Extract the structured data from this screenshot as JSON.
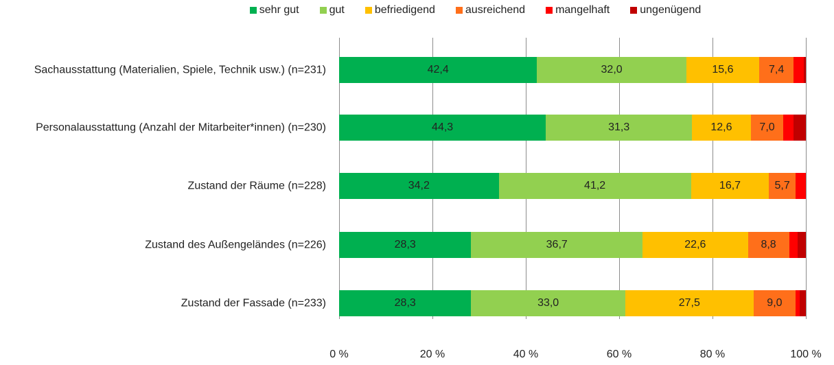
{
  "chart_data": {
    "type": "stacked-bar-horizontal",
    "categories": [
      "Sachausstattung (Materialien, Spiele, Technik usw.) (n=231)",
      "Personalausstattung (Anzahl der Mitarbeiter*innen) (n=230)",
      "Zustand der Räume (n=228)",
      "Zustand des Außengeländes (n=226)",
      "Zustand der Fassade (n=233)"
    ],
    "series": [
      {
        "name": "sehr gut",
        "color": "#00b050",
        "values": [
          42.4,
          44.3,
          34.2,
          28.3,
          28.3
        ],
        "value_labels": [
          "42,4",
          "44,3",
          "34,2",
          "28,3",
          "28,3"
        ]
      },
      {
        "name": "gut",
        "color": "#92d050",
        "values": [
          32.0,
          31.3,
          41.2,
          36.7,
          33.0
        ],
        "value_labels": [
          "32,0",
          "31,3",
          "41,2",
          "36,7",
          "33,0"
        ]
      },
      {
        "name": "befriedigend",
        "color": "#ffc000",
        "values": [
          15.6,
          12.6,
          16.7,
          22.6,
          27.5
        ],
        "value_labels": [
          "15,6",
          "12,6",
          "16,7",
          "22,6",
          "27,5"
        ]
      },
      {
        "name": "ausreichend",
        "color": "#ff6f1a",
        "values": [
          7.4,
          7.0,
          5.7,
          8.8,
          9.0
        ],
        "value_labels": [
          "7,4",
          "7,0",
          "5,7",
          "8,8",
          "9,0"
        ]
      },
      {
        "name": "mangelhaft",
        "color": "#ff0000",
        "values": [
          2.2,
          2.2,
          2.2,
          1.8,
          0.9
        ]
      },
      {
        "name": "ungenügend",
        "color": "#c00000",
        "values": [
          0.4,
          2.6,
          0,
          1.8,
          1.3
        ]
      }
    ],
    "xlim": [
      0,
      100
    ],
    "xticks": [
      {
        "value": 0,
        "label": "0 %"
      },
      {
        "value": 20,
        "label": "20 %"
      },
      {
        "value": 40,
        "label": "40 %"
      },
      {
        "value": 60,
        "label": "60 %"
      },
      {
        "value": 80,
        "label": "80 %"
      },
      {
        "value": 100,
        "label": "100 %"
      }
    ],
    "grid": true,
    "legend": "top"
  }
}
